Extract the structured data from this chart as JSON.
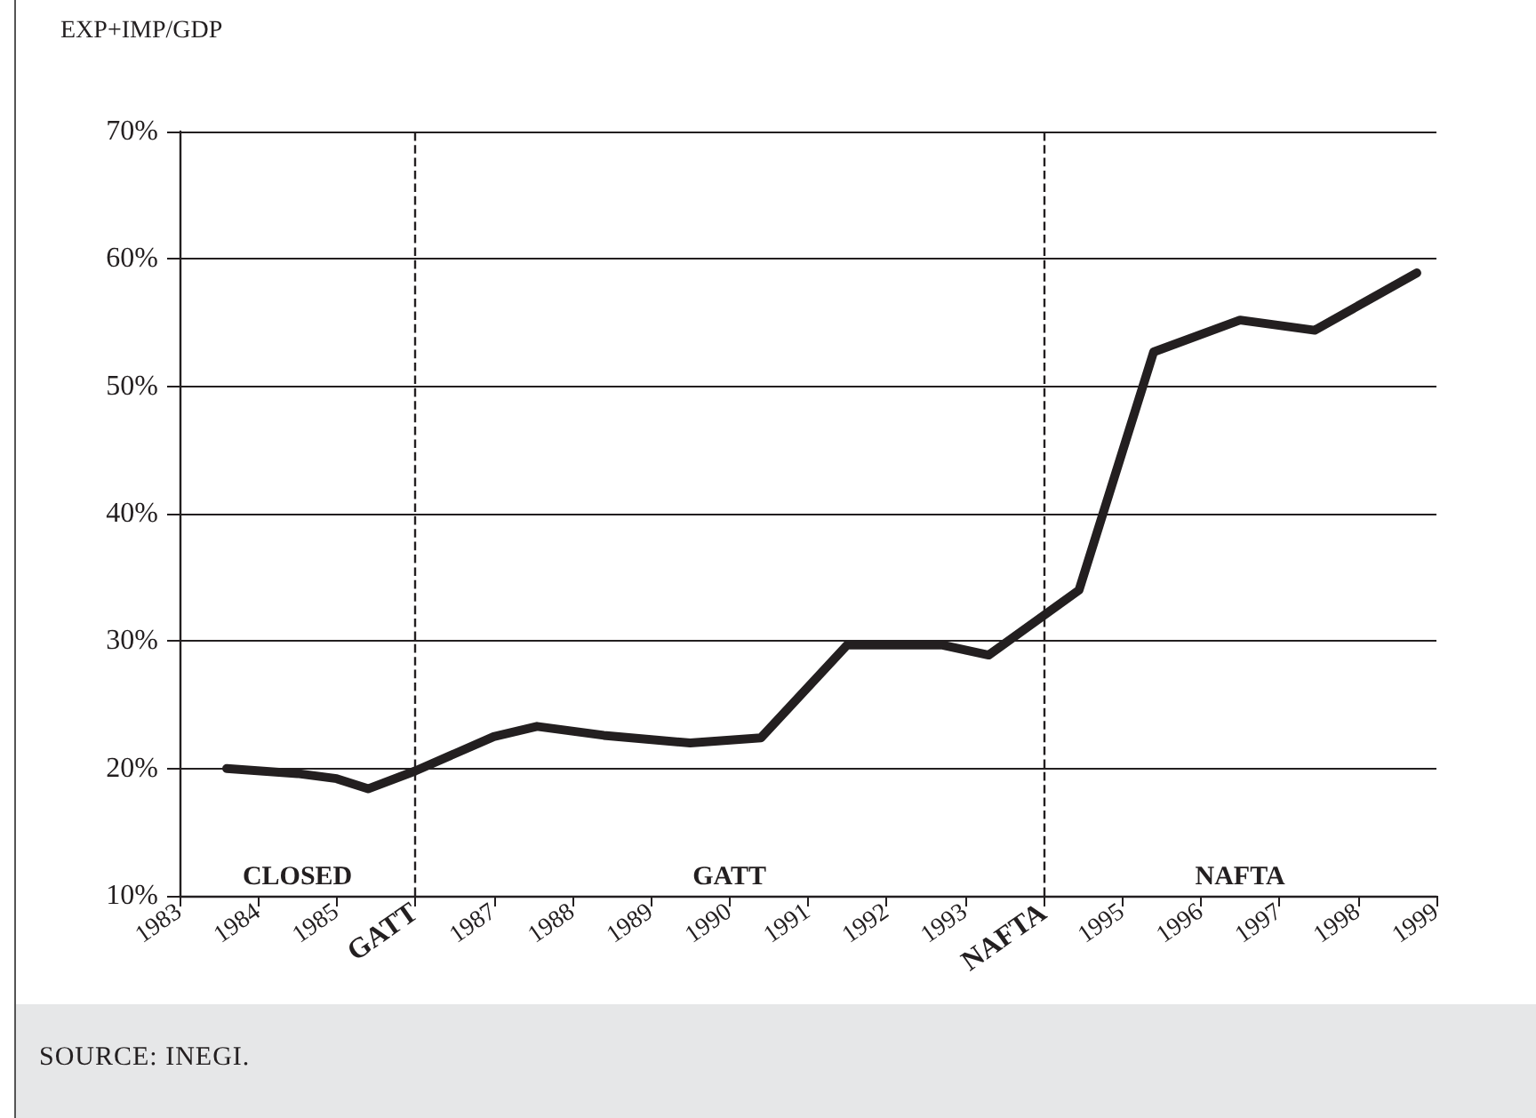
{
  "chart_data": {
    "type": "line",
    "ylabel": "EXP+IMP/GDP",
    "x": [
      1983.6,
      1984.5,
      1985.0,
      1985.4,
      1986.0,
      1987.0,
      1987.55,
      1988.4,
      1989.5,
      1990.4,
      1991.5,
      1992.7,
      1993.3,
      1994.45,
      1995.4,
      1996.5,
      1997.45,
      1998.75
    ],
    "series": [
      {
        "color": "#231f20",
        "values": [
          20.0,
          19.6,
          19.2,
          18.4,
          19.8,
          22.5,
          23.3,
          22.6,
          22.0,
          22.4,
          29.7,
          29.7,
          28.9,
          34.0,
          52.7,
          55.2,
          54.4,
          58.9
        ]
      }
    ],
    "xlim": [
      1983,
      1999
    ],
    "xticks": [
      1983,
      1984,
      1985,
      {
        "value": 1986,
        "label": "GATT"
      },
      1987,
      1988,
      1989,
      1990,
      1991,
      1992,
      1993,
      {
        "value": 1994,
        "label": "NAFTA"
      },
      1995,
      1996,
      1997,
      1998,
      1999
    ],
    "ylim": [
      10,
      70
    ],
    "yticks": [
      {
        "value": 10,
        "label": "10%"
      },
      {
        "value": 20,
        "label": "20%"
      },
      {
        "value": 30,
        "label": "30%"
      },
      {
        "value": 40,
        "label": "40%"
      },
      {
        "value": 50,
        "label": "50%"
      },
      {
        "value": 60,
        "label": "60%"
      },
      {
        "value": 70,
        "label": "70%"
      }
    ],
    "grid": "y",
    "marker": "none",
    "line_style": "solid",
    "ref_lines": [
      {
        "axis": "x",
        "value": 1986,
        "line_style": "dashed"
      },
      {
        "axis": "x",
        "value": 1994,
        "line_style": "dashed"
      }
    ],
    "annotations": [
      "CLOSED",
      "GATT",
      "NAFTA",
      "SOURCE: INEGI."
    ]
  }
}
